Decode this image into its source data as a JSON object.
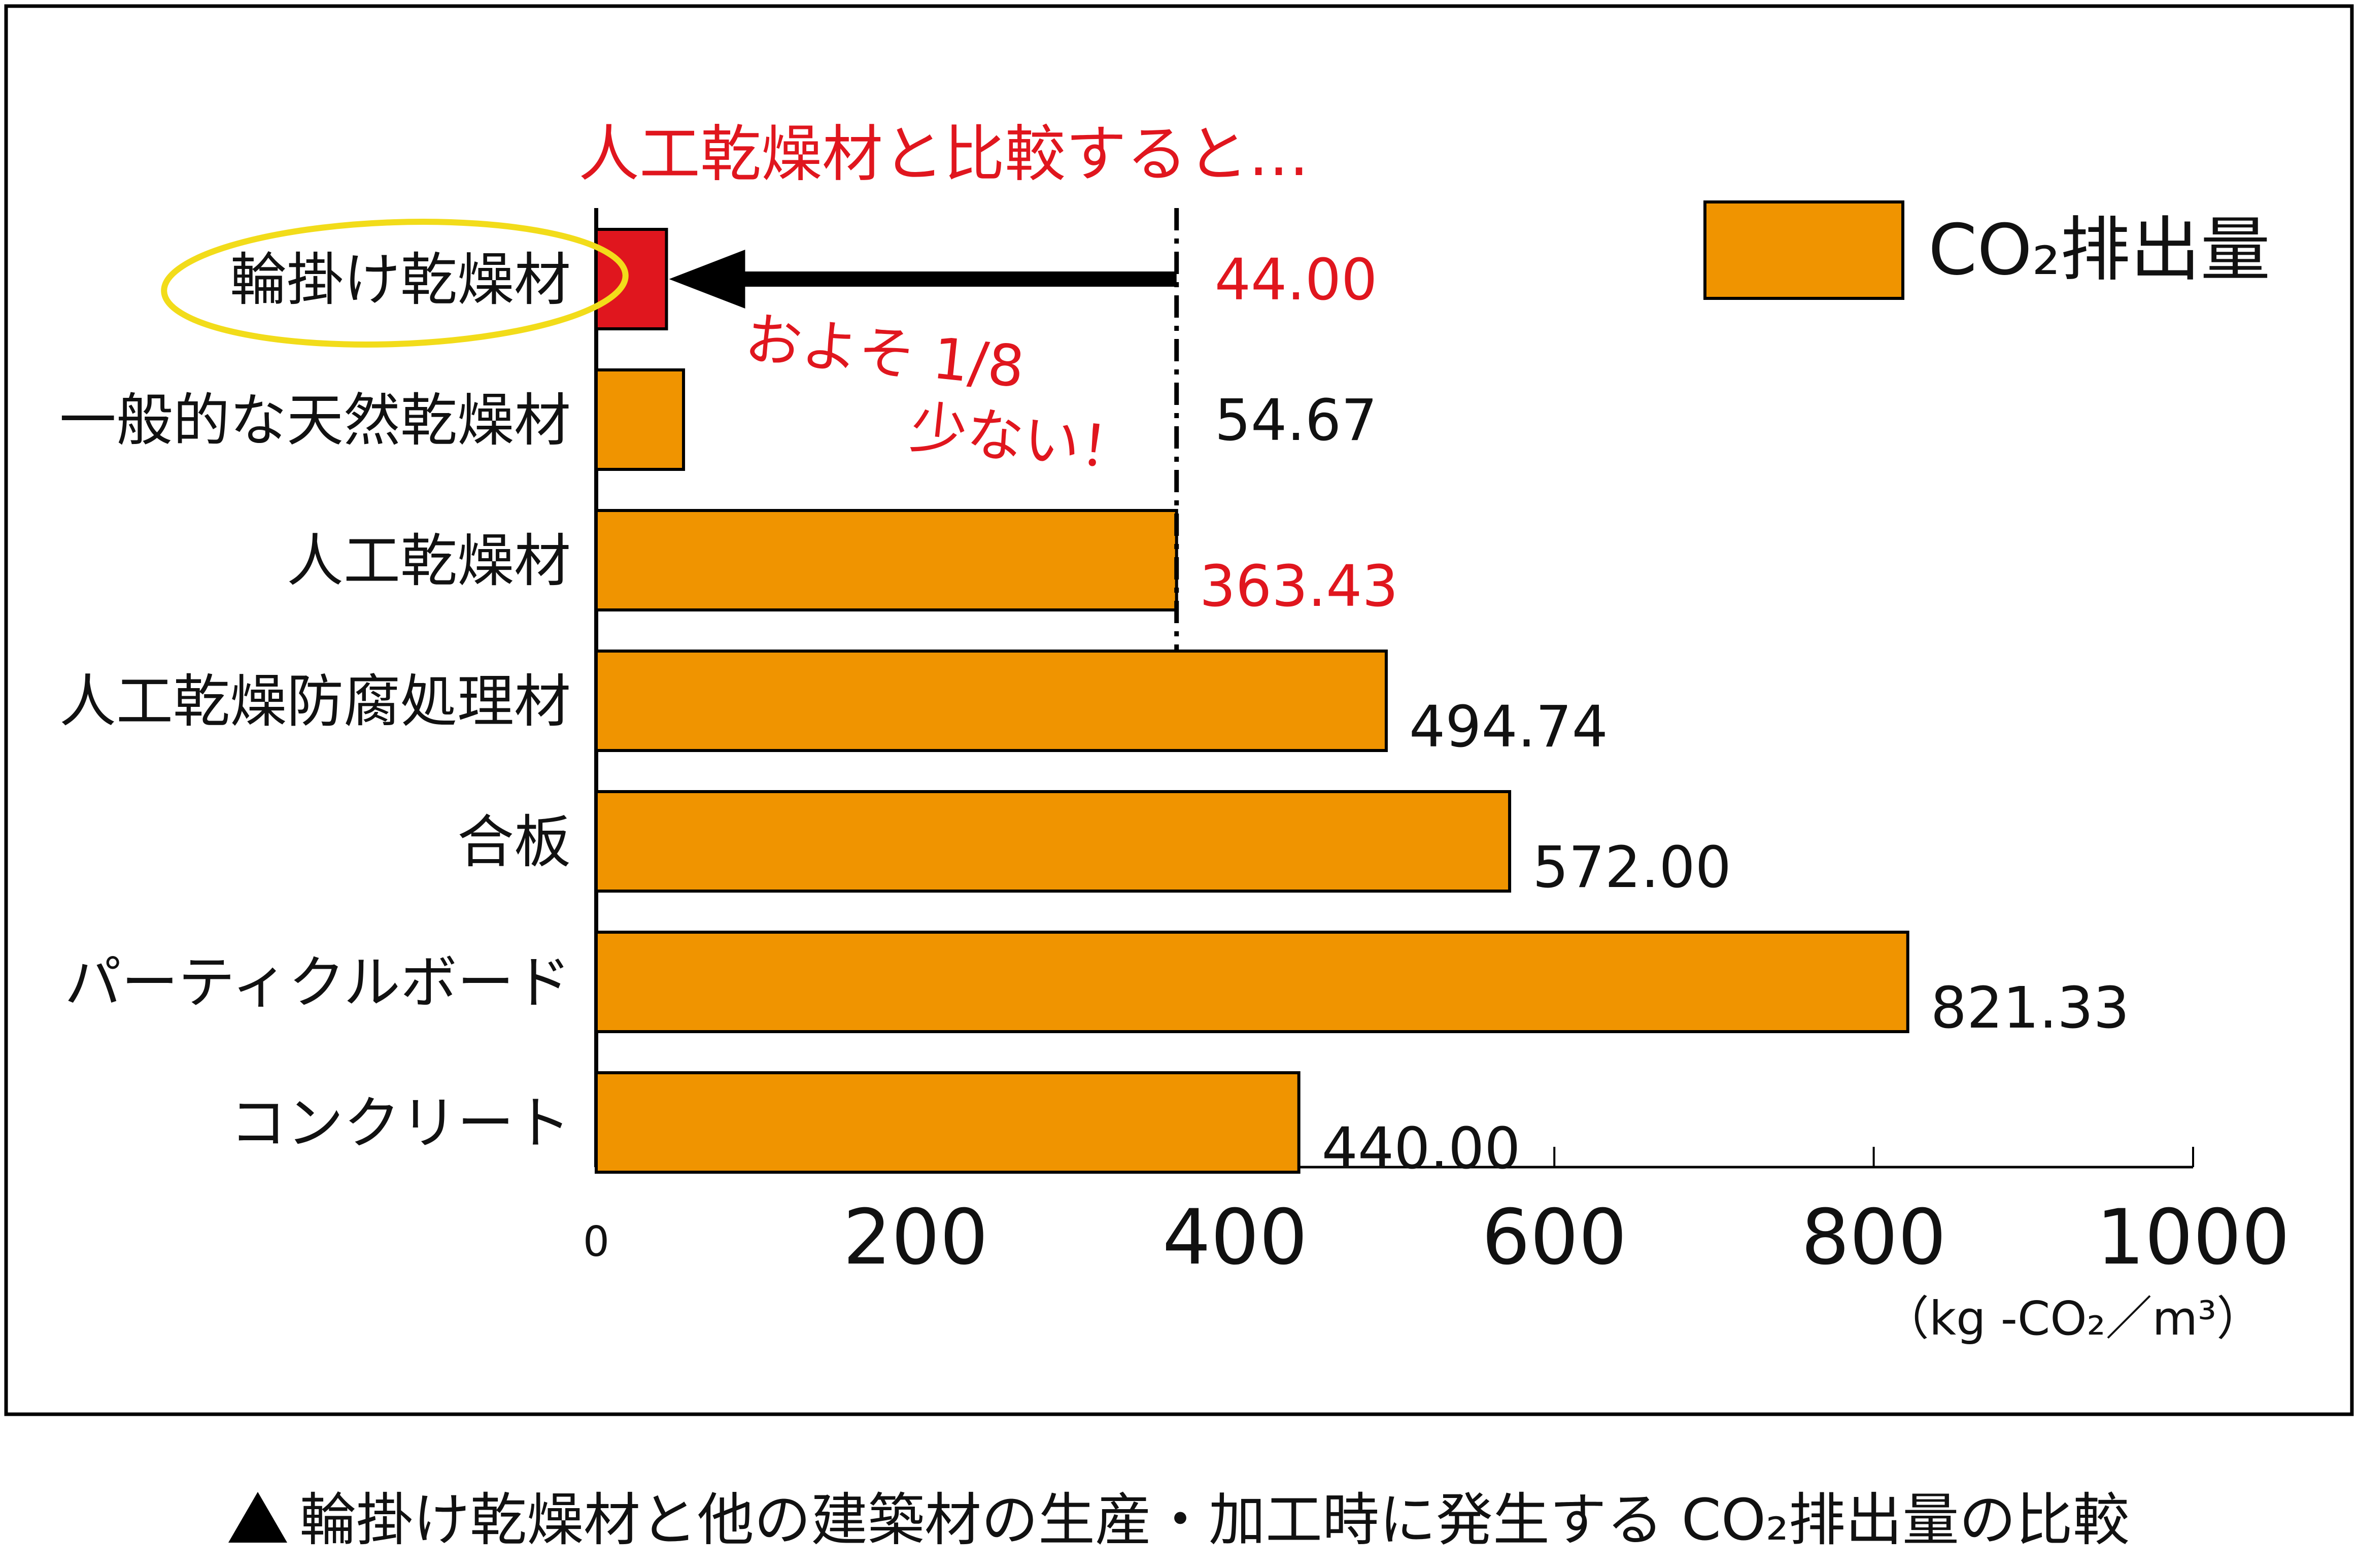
{
  "chart_data": {
    "type": "bar",
    "orientation": "horizontal",
    "categories": [
      "輪掛け乾燥材",
      "一般的な天然乾燥材",
      "人工乾燥材",
      "人工乾燥防腐処理材",
      "合板",
      "パーティクルボード",
      "コンクリート"
    ],
    "values": [
      44.0,
      54.67,
      363.43,
      494.74,
      572.0,
      821.33,
      440.0
    ],
    "value_labels": [
      "44.00",
      "54.67",
      "363.43",
      "494.74",
      "572.00",
      "821.33",
      "440.00"
    ],
    "highlighted_value_labels": [
      0,
      2
    ],
    "xlim": [
      0,
      1000
    ],
    "xticks": [
      0,
      200,
      400,
      600,
      800,
      1000
    ],
    "xtick_labels": [
      "0",
      "200",
      "400",
      "600",
      "800",
      "1000"
    ],
    "unit_label": "（kg -CO₂／m³）",
    "series": [
      {
        "name": "CO₂排出量",
        "color": "#f09400"
      }
    ],
    "highlight_bar": {
      "index": 0,
      "color": "#e0161e"
    },
    "legend": {
      "label": "CO₂排出量",
      "placement": "top-right"
    },
    "grid": false,
    "reference_line_value": 363.43,
    "annotations": {
      "top": "人工乾燥材と比較すると…",
      "ratio_line1": "およそ 1/8",
      "ratio_line2": "少ない！"
    },
    "colors": {
      "bar": "#f09400",
      "highlight": "#e0161e",
      "annotation": "#e0161e",
      "circle": "#f2dc1a"
    }
  },
  "caption": {
    "text": "輪掛け乾燥材と他の建築材の生産・加工時に発生する CO₂排出量の比較"
  }
}
